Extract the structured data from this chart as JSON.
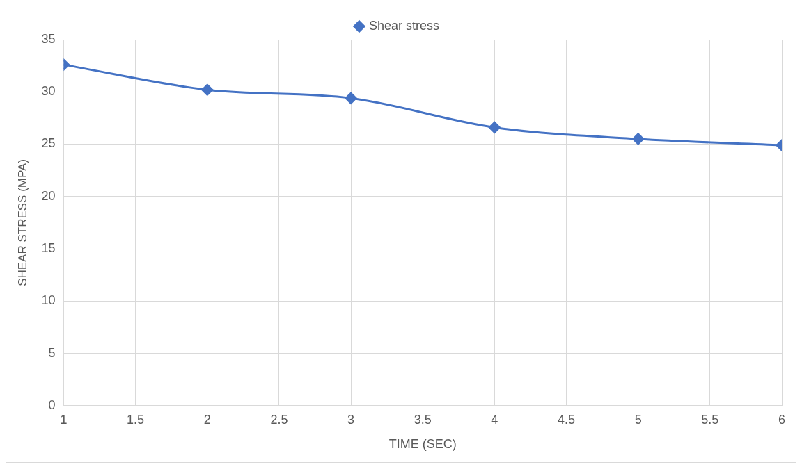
{
  "chart_data": {
    "type": "line",
    "xlabel": "TIME (SEC)",
    "ylabel": "SHEAR STRESS (MPA)",
    "x": [
      1,
      2,
      3,
      4,
      5,
      6
    ],
    "series": [
      {
        "name": "Shear stress",
        "color": "#4472c4",
        "values": [
          32.6,
          30.2,
          29.4,
          26.6,
          25.5,
          24.9
        ]
      }
    ],
    "xlim": [
      1,
      6
    ],
    "xticks": [
      1,
      1.5,
      2,
      2.5,
      3,
      3.5,
      4,
      4.5,
      5,
      5.5,
      6
    ],
    "ylim": [
      0,
      35
    ],
    "yticks": [
      0,
      5,
      10,
      15,
      20,
      25,
      30,
      35
    ],
    "grid": true,
    "legend": "top",
    "marker": "diamond",
    "line_style": "solid"
  }
}
